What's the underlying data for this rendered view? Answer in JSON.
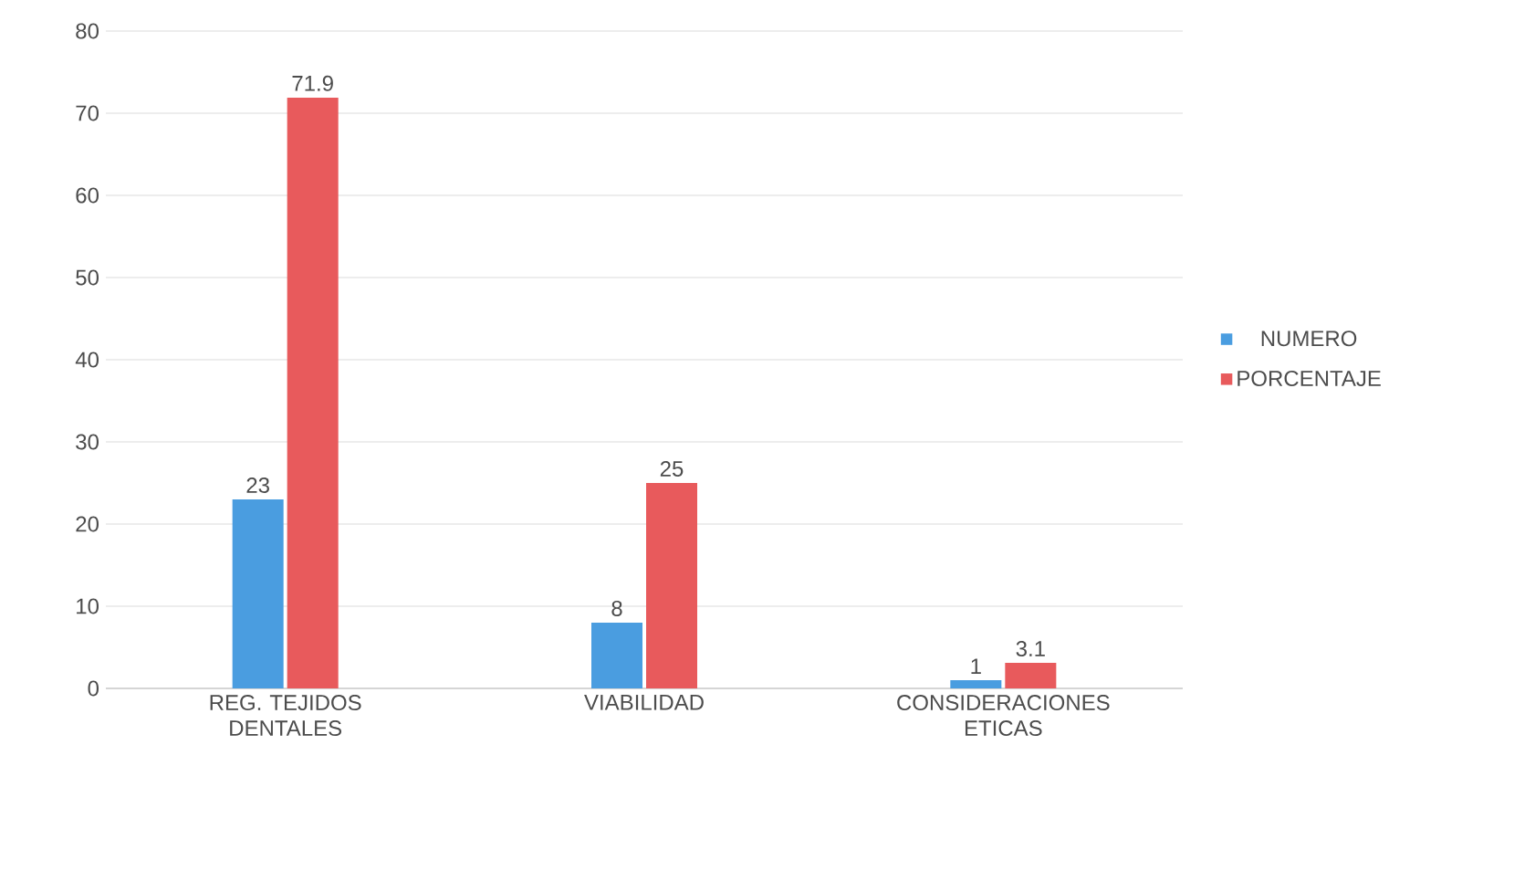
{
  "chart_data": {
    "type": "bar",
    "categories": [
      "REG. TEJIDOS DENTALES",
      "VIABILIDAD",
      "CONSIDERACIONES ETICAS"
    ],
    "series": [
      {
        "name": "NUMERO",
        "color": "#4a9de0",
        "values": [
          23,
          8,
          1
        ]
      },
      {
        "name": "PORCENTAJE",
        "color": "#e85a5c",
        "values": [
          71.9,
          25,
          3.1
        ]
      }
    ],
    "ylim": [
      0,
      80
    ],
    "yticks": [
      0,
      10,
      20,
      30,
      40,
      50,
      60,
      70,
      80
    ],
    "grid": "y",
    "legend": "right",
    "data_labels": true
  }
}
